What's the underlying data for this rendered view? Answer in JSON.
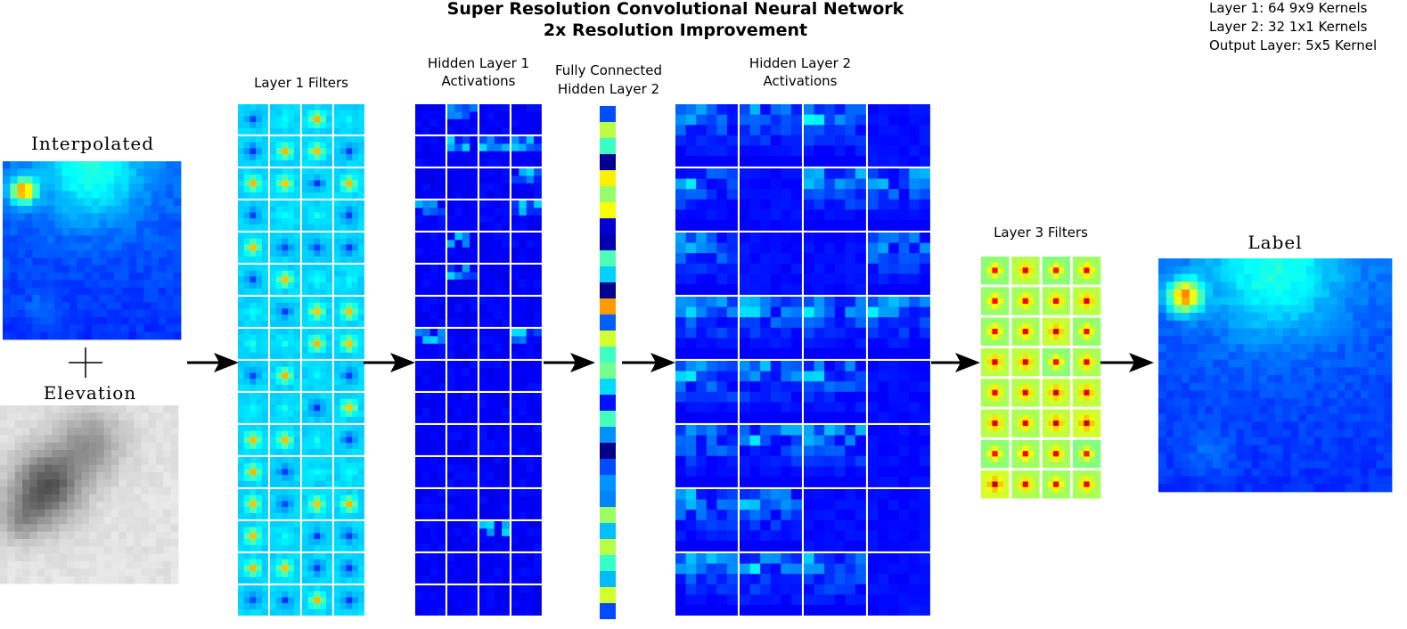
{
  "header": {
    "title": [
      "Super Resolution Convolutional Neural Network",
      "2x Resolution Improvement"
    ]
  },
  "notes": [
    "Layer 1: 64 9x9 Kernels",
    "Layer 2: 32 1x1 Kernels",
    "Output Layer: 5x5 Kernel"
  ],
  "inputs": {
    "interpolated": "Interpolated",
    "elevation": "Elevation"
  },
  "stages": {
    "layer1_filters": [
      "Layer 1 Filters"
    ],
    "hidden1": [
      "Hidden Layer 1",
      "Activations"
    ],
    "fully_connected": [
      "Fully Connected",
      "Hidden Layer 2"
    ],
    "hidden2": [
      "Hidden Layer 2",
      "Activations"
    ],
    "layer3_filters": [
      "Layer 3 Filters"
    ]
  },
  "output": {
    "label": "Label"
  }
}
